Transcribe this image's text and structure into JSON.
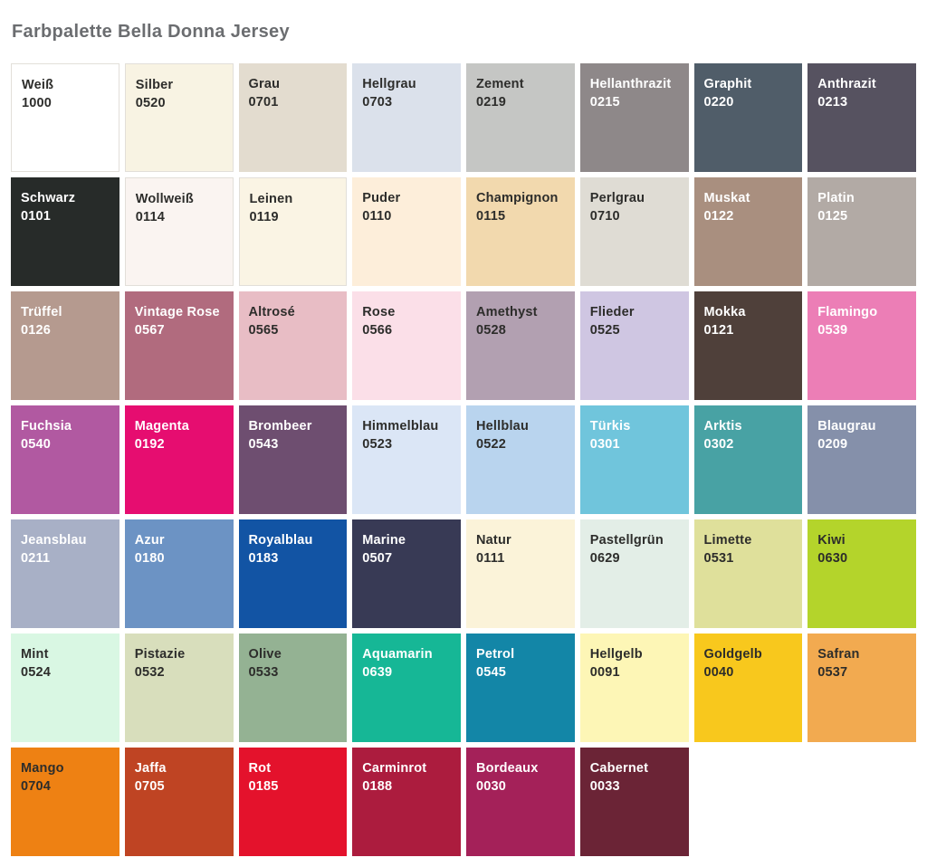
{
  "title": "Farbpalette Bella Donna Jersey",
  "palette": {
    "label_dark": "#2d2d2b",
    "label_light": "#ffffff",
    "swatches": [
      {
        "name": "Weiß",
        "code": "1000",
        "color": "#ffffff",
        "text": "dark",
        "border": true
      },
      {
        "name": "Silber",
        "code": "0520",
        "color": "#f8f3e3",
        "text": "dark",
        "border": true
      },
      {
        "name": "Grau",
        "code": "0701",
        "color": "#e3dccf",
        "text": "dark",
        "border": false
      },
      {
        "name": "Hellgrau",
        "code": "0703",
        "color": "#dbe1eb",
        "text": "dark",
        "border": false
      },
      {
        "name": "Zement",
        "code": "0219",
        "color": "#c5c6c4",
        "text": "dark",
        "border": false
      },
      {
        "name": "Hellanthrazit",
        "code": "0215",
        "color": "#8e8889",
        "text": "light",
        "border": false
      },
      {
        "name": "Graphit",
        "code": "0220",
        "color": "#505d69",
        "text": "light",
        "border": false
      },
      {
        "name": "Anthrazit",
        "code": "0213",
        "color": "#565260",
        "text": "light",
        "border": false
      },
      {
        "name": "Schwarz",
        "code": "0101",
        "color": "#272b29",
        "text": "light",
        "border": false
      },
      {
        "name": "Wollweiß",
        "code": "0114",
        "color": "#faf4f1",
        "text": "dark",
        "border": true
      },
      {
        "name": "Leinen",
        "code": "0119",
        "color": "#faf4e4",
        "text": "dark",
        "border": true
      },
      {
        "name": "Puder",
        "code": "0110",
        "color": "#fdeeda",
        "text": "dark",
        "border": false
      },
      {
        "name": "Champignon",
        "code": "0115",
        "color": "#f2d9ae",
        "text": "dark",
        "border": false
      },
      {
        "name": "Perlgrau",
        "code": "0710",
        "color": "#dfdcd4",
        "text": "dark",
        "border": false
      },
      {
        "name": "Muskat",
        "code": "0122",
        "color": "#a98f7f",
        "text": "light",
        "border": false
      },
      {
        "name": "Platin",
        "code": "0125",
        "color": "#b2aaa5",
        "text": "light",
        "border": false
      },
      {
        "name": "Trüffel",
        "code": "0126",
        "color": "#b59a8f",
        "text": "light",
        "border": false
      },
      {
        "name": "Vintage Rose",
        "code": "0567",
        "color": "#b16b7e",
        "text": "light",
        "border": false
      },
      {
        "name": "Altrosé",
        "code": "0565",
        "color": "#e8bdc5",
        "text": "dark",
        "border": false
      },
      {
        "name": "Rose",
        "code": "0566",
        "color": "#fbdfe8",
        "text": "dark",
        "border": false
      },
      {
        "name": "Amethyst",
        "code": "0528",
        "color": "#b2a0b1",
        "text": "dark",
        "border": false
      },
      {
        "name": "Flieder",
        "code": "0525",
        "color": "#cfc6e2",
        "text": "dark",
        "border": false
      },
      {
        "name": "Mokka",
        "code": "0121",
        "color": "#4f403a",
        "text": "light",
        "border": false
      },
      {
        "name": "Flamingo",
        "code": "0539",
        "color": "#ec7eb6",
        "text": "light",
        "border": false
      },
      {
        "name": "Fuchsia",
        "code": "0540",
        "color": "#b159a1",
        "text": "light",
        "border": false
      },
      {
        "name": "Magenta",
        "code": "0192",
        "color": "#e60d70",
        "text": "light",
        "border": false
      },
      {
        "name": "Brombeer",
        "code": "0543",
        "color": "#6e4e70",
        "text": "light",
        "border": false
      },
      {
        "name": "Himmelblau",
        "code": "0523",
        "color": "#dbe6f6",
        "text": "dark",
        "border": false
      },
      {
        "name": "Hellblau",
        "code": "0522",
        "color": "#b9d4ee",
        "text": "dark",
        "border": false
      },
      {
        "name": "Türkis",
        "code": "0301",
        "color": "#70c5dc",
        "text": "light",
        "border": false
      },
      {
        "name": "Arktis",
        "code": "0302",
        "color": "#48a2a4",
        "text": "light",
        "border": false
      },
      {
        "name": "Blaugrau",
        "code": "0209",
        "color": "#8590aa",
        "text": "light",
        "border": false
      },
      {
        "name": "Jeansblau",
        "code": "0211",
        "color": "#a8b0c6",
        "text": "light",
        "border": false
      },
      {
        "name": "Azur",
        "code": "0180",
        "color": "#6c93c4",
        "text": "light",
        "border": false
      },
      {
        "name": "Royalblau",
        "code": "0183",
        "color": "#1254a4",
        "text": "light",
        "border": false
      },
      {
        "name": "Marine",
        "code": "0507",
        "color": "#383a55",
        "text": "light",
        "border": false
      },
      {
        "name": "Natur",
        "code": "0111",
        "color": "#fbf3d9",
        "text": "dark",
        "border": false
      },
      {
        "name": "Pastellgrün",
        "code": "0629",
        "color": "#e3eee7",
        "text": "dark",
        "border": false
      },
      {
        "name": "Limette",
        "code": "0531",
        "color": "#dfe09b",
        "text": "dark",
        "border": false
      },
      {
        "name": "Kiwi",
        "code": "0630",
        "color": "#b4d42b",
        "text": "dark",
        "border": false
      },
      {
        "name": "Mint",
        "code": "0524",
        "color": "#d9f7e3",
        "text": "dark",
        "border": false
      },
      {
        "name": "Pistazie",
        "code": "0532",
        "color": "#d8debc",
        "text": "dark",
        "border": false
      },
      {
        "name": "Olive",
        "code": "0533",
        "color": "#94b293",
        "text": "dark",
        "border": false
      },
      {
        "name": "Aquamarin",
        "code": "0639",
        "color": "#16b796",
        "text": "light",
        "border": false
      },
      {
        "name": "Petrol",
        "code": "0545",
        "color": "#1386a7",
        "text": "light",
        "border": false
      },
      {
        "name": "Hellgelb",
        "code": "0091",
        "color": "#fdf6b6",
        "text": "dark",
        "border": false
      },
      {
        "name": "Goldgelb",
        "code": "0040",
        "color": "#f8c81d",
        "text": "dark",
        "border": false
      },
      {
        "name": "Safran",
        "code": "0537",
        "color": "#f2aa50",
        "text": "dark",
        "border": false
      },
      {
        "name": "Mango",
        "code": "0704",
        "color": "#ee8113",
        "text": "dark",
        "border": false
      },
      {
        "name": "Jaffa",
        "code": "0705",
        "color": "#bf4423",
        "text": "light",
        "border": false
      },
      {
        "name": "Rot",
        "code": "0185",
        "color": "#e4122c",
        "text": "light",
        "border": false
      },
      {
        "name": "Carminrot",
        "code": "0188",
        "color": "#ac1c3e",
        "text": "light",
        "border": false
      },
      {
        "name": "Bordeaux",
        "code": "0030",
        "color": "#a42159",
        "text": "light",
        "border": false
      },
      {
        "name": "Cabernet",
        "code": "0033",
        "color": "#6b2436",
        "text": "light",
        "border": false
      }
    ]
  }
}
